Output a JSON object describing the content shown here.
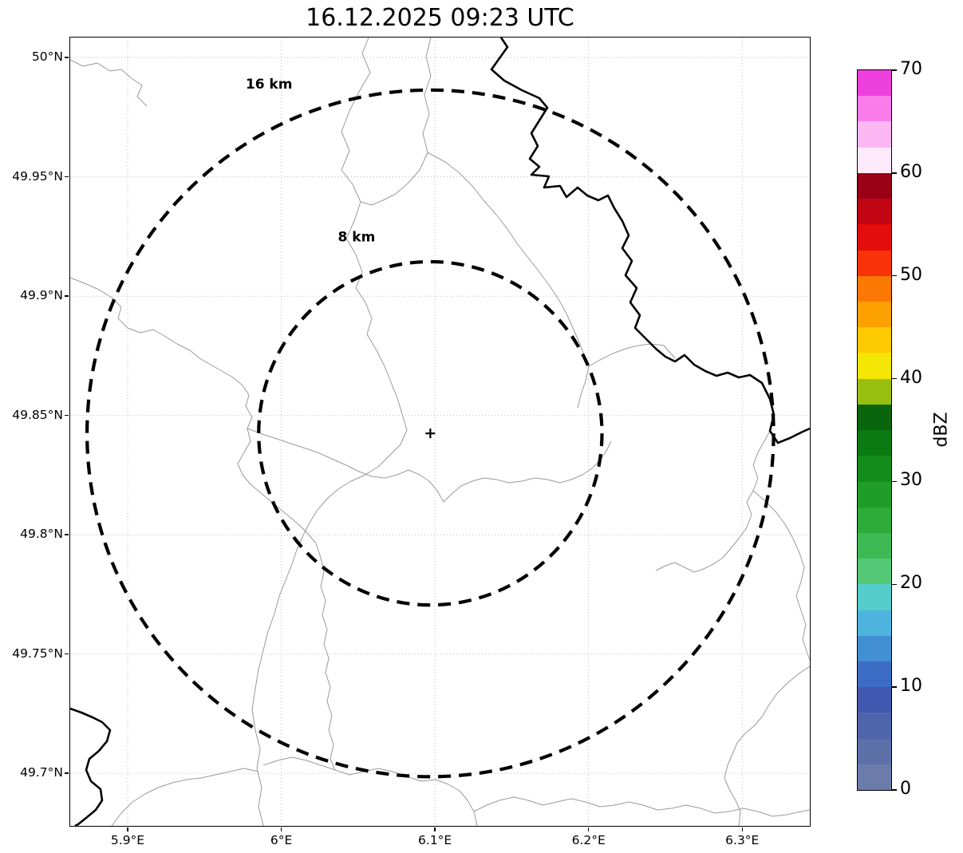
{
  "title": "16.12.2025 09:23 UTC",
  "chart_data": {
    "type": "heatmap",
    "title": "16.12.2025 09:23 UTC",
    "xlabel": "",
    "ylabel": "",
    "xlim": [
      5.8626,
      6.344
    ],
    "ylim": [
      49.678,
      50.0084
    ],
    "grid": "dotted",
    "x_ticks": [
      {
        "value": 5.9,
        "label": "5.9°E"
      },
      {
        "value": 6.0,
        "label": "6°E"
      },
      {
        "value": 6.1,
        "label": "6.1°E"
      },
      {
        "value": 6.2,
        "label": "6.2°E"
      },
      {
        "value": 6.3,
        "label": "6.3°E"
      }
    ],
    "y_ticks": [
      {
        "value": 50.0,
        "label": "50°N"
      },
      {
        "value": 49.95,
        "label": "49.95°N"
      },
      {
        "value": 49.9,
        "label": "49.9°N"
      },
      {
        "value": 49.85,
        "label": "49.85°N"
      },
      {
        "value": 49.8,
        "label": "49.8°N"
      },
      {
        "value": 49.75,
        "label": "49.75°N"
      },
      {
        "value": 49.7,
        "label": "49.7°N"
      }
    ],
    "radar_center": {
      "lon": 6.097,
      "lat": 49.8425,
      "marker": "+"
    },
    "range_rings": [
      {
        "radius_km": 8,
        "label": "8 km",
        "label_lon": 6.049,
        "label_lat": 49.923
      },
      {
        "radius_km": 16,
        "label": "16 km",
        "label_lon": 5.992,
        "label_lat": 49.987
      }
    ],
    "reflectivity_echoes": "none",
    "colorbar": {
      "label": "dBZ",
      "min": 0,
      "max": 70,
      "ticks": [
        0,
        10,
        20,
        30,
        40,
        50,
        60,
        70
      ],
      "segment_dbz": 2.5,
      "colors_bottom_to_top": [
        "#6b7cab",
        "#5d70a8",
        "#4f64aa",
        "#4257b0",
        "#3c6cc4",
        "#438fd3",
        "#4fb4dd",
        "#55cdca",
        "#55c878",
        "#3eba55",
        "#2dac3a",
        "#1e9e28",
        "#148c1c",
        "#0c7a12",
        "#0a660c",
        "#98bf10",
        "#f4e605",
        "#fdc900",
        "#fda002",
        "#fb7804",
        "#f93208",
        "#e40d0d",
        "#c20512",
        "#9a0016",
        "#fde9fb",
        "#fdb7f2",
        "#fa7cea",
        "#ee40dc"
      ]
    }
  },
  "map_features": {
    "thin_border_color": "#9a9a9a",
    "thick_border_color": "#000000",
    "thick_lines": [
      "540,0 548,12 538,26 528,40 544,54 566,66 588,76 598,88 588,104 578,120 586,136 576,152 588,162 578,172 600,174 594,188 614,186 622,200 636,188 648,198 662,204 674,198 682,214 692,230 700,248 692,264 704,280 696,298 710,314 702,332 714,348 708,364 722,378 734,390 746,400 758,406 770,398 782,410 796,418 810,424 824,420 838,426 852,423 867,433 877,453 882,473 877,493 887,508 902,502 916,495 927,490",
      "0,841 14,846 28,852 40,858 50,868 46,882 36,894 24,904 20,918 26,932 38,942 40,956 32,968 20,978 10,986 6,988"
    ],
    "thin_lines": [
      "0,28 16,36 34,32 50,42 64,40 78,52 90,60 84,74 96,86",
      "374,0 366,20 376,44 362,68 350,92 340,118 350,142 340,166 354,184 364,206 356,230 346,252 358,272 366,294 358,314 370,332 378,352 372,372 384,392 394,412 402,432 410,452 416,472 422,492 414,510 400,524 386,538 370,548 352,556 336,566 322,578 310,592 300,608 292,624 284,642 278,660 270,680 262,700 256,722 248,744 242,768 236,792 232,816 228,842 232,868 238,892 234,916 240,940 236,964 242,988",
      "452,0 446,24 452,48 444,72 450,96 442,120 448,144 438,166 424,182 408,196 392,204 378,210 364,206",
      "448,144 470,156 488,170 504,186 518,204 534,222 548,240 560,258 574,276 588,294 600,310 612,328 622,346 630,364 638,382 644,398 650,412 646,430 640,448 636,464",
      "650,412 664,404 680,396 696,390 712,386 728,384 744,386 758,402",
      "0,301 18,308 36,316 52,326 64,338 60,352 72,364 88,370 104,366 118,374 134,384 150,392 162,402 176,410 190,418 204,426 216,436 224,448 220,462 228,476 222,490 226,506 218,520 210,534 216,548 226,560 238,570 250,580 262,590 274,600 286,610 298,622 308,634",
      "222,490 238,496 256,502 274,508 292,514 310,520 328,528 346,536 362,544 378,550 394,552 410,548 424,542 438,548 450,556 460,568 468,582 478,572 490,562 504,556 518,552 534,554 550,558 566,556 582,552 598,554 614,558 628,554 642,548 654,540 664,530 672,518 678,506",
      "877,493 870,506 862,520 856,536 862,552 856,568 848,582 854,598 848,614 838,628 828,640 818,652 806,660 794,666 782,670 770,664 758,658 746,662 734,668",
      "856,568 870,580 884,594 896,610 906,628 914,646 920,664 916,682 910,700 916,718 922,736 918,754 924,772 927,780",
      "927,788 912,798 898,810 886,822 876,836 868,850 858,862 846,872 836,884 830,898 824,912 820,928 826,942 834,956 840,970 838,988",
      "242,912 260,906 278,902 296,906 314,912 332,918 350,924 368,920 386,916 404,920 422,926 440,932 458,930 474,936 488,944 498,956 506,970 510,988",
      "506,970 522,962 538,956 556,952 574,956 592,962 610,958 628,954 646,958 664,964 682,962 700,958 718,962 736,968 754,966 772,962 790,966 808,972 826,970 844,966 862,970 880,976 898,974 916,970 927,968",
      "52,988 64,972 78,958 94,948 110,940 128,934 146,930 164,928 182,924 200,920 218,916 236,920",
      "308,634 314,652 318,670 314,688 320,706 316,724 322,742 318,760 324,778 320,796 326,814 322,832 328,850 324,868 330,886 326,904 332,918"
    ]
  }
}
